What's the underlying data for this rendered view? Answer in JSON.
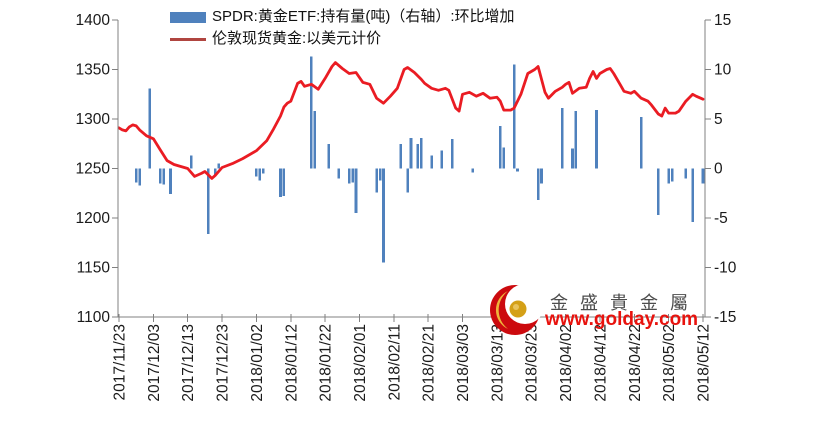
{
  "legend": {
    "items": [
      {
        "label": "SPDR:黄金ETF:持有量(吨)（右轴）:环比增加",
        "swatch": "bar",
        "color": "#4f81bd"
      },
      {
        "label": "伦敦现货黄金:以美元计价",
        "swatch": "line",
        "color": "#b04540"
      }
    ]
  },
  "logo": {
    "name": "金盛貴金屬",
    "url": "www.golday.com",
    "name_color": "#4d4d4d",
    "url_color": "#e8120d",
    "crescent_color": "#cc0a0e",
    "ball_color": "#d4a017"
  },
  "colors": {
    "bar": "#4f81bd",
    "line": "#ea1c23",
    "axis": "#808080",
    "tick_label": "#1a1a1a",
    "background": "#ffffff"
  },
  "chart_data": {
    "type": "combo",
    "title": "",
    "x_axis": {
      "total_days": 170,
      "labels": [
        "2017/11/23",
        "2017/12/03",
        "2017/12/13",
        "2017/12/23",
        "2018/01/02",
        "2018/01/12",
        "2018/01/22",
        "2018/02/01",
        "2018/02/11",
        "2018/02/21",
        "2018/03/03",
        "2018/03/13",
        "2018/03/23",
        "2018/04/02",
        "2018/04/12",
        "2018/04/22",
        "2018/05/02",
        "2018/05/12"
      ]
    },
    "y_left": {
      "min": 1100,
      "max": 1400,
      "ticks": [
        1400,
        1350,
        1300,
        1250,
        1200,
        1150,
        1100
      ]
    },
    "y_right": {
      "min": -15,
      "max": 15,
      "ticks": [
        15,
        10,
        5,
        0,
        -5,
        -10,
        -15
      ]
    },
    "grid": false,
    "legend_position": "top",
    "series": [
      {
        "name": "SPDR:黄金ETF:持有量(吨)（右轴）:环比增加",
        "type": "bar",
        "axis": "right",
        "points": [
          [
            5,
            -1.4
          ],
          [
            6,
            -1.7
          ],
          [
            9,
            8.1
          ],
          [
            12,
            -1.5
          ],
          [
            13,
            -1.6
          ],
          [
            15,
            -2.6
          ],
          [
            21,
            1.3
          ],
          [
            26,
            -6.6
          ],
          [
            28,
            -0.6
          ],
          [
            29,
            0.5
          ],
          [
            40,
            -0.8
          ],
          [
            41,
            -1.2
          ],
          [
            42,
            -0.5
          ],
          [
            47,
            -2.9
          ],
          [
            48,
            -2.8
          ],
          [
            56,
            11.3
          ],
          [
            57,
            5.8
          ],
          [
            61,
            2.5
          ],
          [
            64,
            -1.0
          ],
          [
            67,
            -1.5
          ],
          [
            68,
            -1.4
          ],
          [
            69,
            -4.5
          ],
          [
            75,
            -2.4
          ],
          [
            76,
            -1.2
          ],
          [
            77,
            -9.5
          ],
          [
            82,
            2.5
          ],
          [
            84,
            -2.4
          ],
          [
            85,
            3.1
          ],
          [
            87,
            2.5
          ],
          [
            88,
            3.1
          ],
          [
            91,
            1.3
          ],
          [
            94,
            1.8
          ],
          [
            97,
            3.0
          ],
          [
            103,
            -0.4
          ],
          [
            111,
            4.3
          ],
          [
            112,
            2.1
          ],
          [
            115,
            10.5
          ],
          [
            116,
            -0.3
          ],
          [
            122,
            -3.2
          ],
          [
            123,
            -1.5
          ],
          [
            129,
            6.1
          ],
          [
            132,
            2.0
          ],
          [
            133,
            5.8
          ],
          [
            139,
            5.9
          ],
          [
            152,
            5.2
          ],
          [
            157,
            -4.7
          ],
          [
            160,
            -1.5
          ],
          [
            161,
            -1.3
          ],
          [
            165,
            -1.0
          ],
          [
            167,
            -5.4
          ],
          [
            170,
            -1.5
          ]
        ]
      },
      {
        "name": "伦敦现货黄金:以美元计价",
        "type": "line",
        "axis": "left",
        "points": [
          [
            0,
            1291
          ],
          [
            1,
            1289
          ],
          [
            2,
            1288
          ],
          [
            3,
            1292
          ],
          [
            4,
            1294
          ],
          [
            5,
            1293
          ],
          [
            6,
            1289
          ],
          [
            8,
            1283
          ],
          [
            10,
            1280
          ],
          [
            12,
            1269
          ],
          [
            14,
            1258
          ],
          [
            16,
            1254
          ],
          [
            18,
            1252
          ],
          [
            20,
            1250
          ],
          [
            22,
            1242
          ],
          [
            24,
            1245
          ],
          [
            25,
            1247
          ],
          [
            27,
            1240
          ],
          [
            28,
            1243
          ],
          [
            30,
            1251
          ],
          [
            33,
            1255
          ],
          [
            36,
            1260
          ],
          [
            40,
            1268
          ],
          [
            43,
            1278
          ],
          [
            45,
            1290
          ],
          [
            47,
            1303
          ],
          [
            48,
            1312
          ],
          [
            49,
            1316
          ],
          [
            50,
            1318
          ],
          [
            52,
            1336
          ],
          [
            53,
            1338
          ],
          [
            54,
            1333
          ],
          [
            56,
            1335
          ],
          [
            58,
            1330
          ],
          [
            60,
            1341
          ],
          [
            62,
            1353
          ],
          [
            63,
            1357
          ],
          [
            65,
            1351
          ],
          [
            67,
            1346
          ],
          [
            69,
            1347
          ],
          [
            71,
            1337
          ],
          [
            73,
            1335
          ],
          [
            75,
            1321
          ],
          [
            77,
            1316
          ],
          [
            79,
            1323
          ],
          [
            81,
            1331
          ],
          [
            83,
            1350
          ],
          [
            84,
            1352
          ],
          [
            86,
            1347
          ],
          [
            88,
            1340
          ],
          [
            89,
            1336
          ],
          [
            91,
            1331
          ],
          [
            93,
            1329
          ],
          [
            95,
            1331
          ],
          [
            96,
            1329
          ],
          [
            98,
            1311
          ],
          [
            99,
            1308
          ],
          [
            100,
            1325
          ],
          [
            102,
            1327
          ],
          [
            104,
            1323
          ],
          [
            106,
            1326
          ],
          [
            108,
            1321
          ],
          [
            110,
            1322
          ],
          [
            111,
            1318
          ],
          [
            112,
            1309
          ],
          [
            114,
            1309
          ],
          [
            115,
            1311
          ],
          [
            117,
            1325
          ],
          [
            119,
            1346
          ],
          [
            121,
            1350
          ],
          [
            122,
            1353
          ],
          [
            124,
            1327
          ],
          [
            125,
            1321
          ],
          [
            127,
            1328
          ],
          [
            129,
            1332
          ],
          [
            130,
            1335
          ],
          [
            131,
            1337
          ],
          [
            132,
            1326
          ],
          [
            134,
            1331
          ],
          [
            136,
            1332
          ],
          [
            137,
            1341
          ],
          [
            138,
            1348
          ],
          [
            139,
            1341
          ],
          [
            140,
            1346
          ],
          [
            142,
            1350
          ],
          [
            143,
            1351
          ],
          [
            144,
            1346
          ],
          [
            146,
            1334
          ],
          [
            147,
            1328
          ],
          [
            149,
            1326
          ],
          [
            150,
            1328
          ],
          [
            152,
            1321
          ],
          [
            154,
            1318
          ],
          [
            155,
            1314
          ],
          [
            157,
            1305
          ],
          [
            158,
            1303
          ],
          [
            159,
            1311
          ],
          [
            160,
            1306
          ],
          [
            162,
            1306
          ],
          [
            163,
            1308
          ],
          [
            165,
            1318
          ],
          [
            167,
            1325
          ],
          [
            168,
            1323
          ],
          [
            170,
            1320
          ]
        ]
      }
    ]
  }
}
